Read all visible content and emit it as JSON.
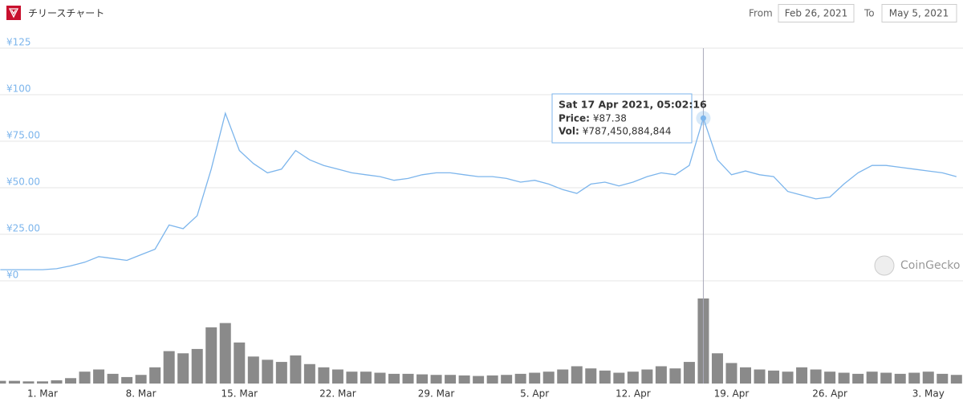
{
  "header": {
    "title": "チリースチャート",
    "from_label": "From",
    "from_date": "Feb 26, 2021",
    "to_label": "To",
    "to_date": "May 5, 2021"
  },
  "watermark": "CoinGecko",
  "chart_data": {
    "type": "line",
    "color": "#7cb5ec",
    "grid": true,
    "categories": [
      null,
      null,
      null,
      "1. Mar",
      null,
      null,
      null,
      null,
      null,
      null,
      "8. Mar",
      null,
      null,
      null,
      null,
      null,
      null,
      "15. Mar",
      null,
      null,
      null,
      null,
      null,
      null,
      "22. Mar",
      null,
      null,
      null,
      null,
      null,
      null,
      "29. Mar",
      null,
      null,
      null,
      null,
      null,
      null,
      "5. Apr",
      null,
      null,
      null,
      null,
      null,
      null,
      "12. Apr",
      null,
      null,
      null,
      null,
      null,
      null,
      "19. Apr",
      null,
      null,
      null,
      null,
      null,
      null,
      "26. Apr",
      null,
      null,
      null,
      null,
      null,
      null,
      "3. May",
      null,
      null
    ],
    "values": [
      6,
      6,
      6,
      6,
      6.5,
      8,
      10,
      13,
      12,
      11,
      14,
      17,
      30,
      28,
      35,
      60,
      90,
      70,
      63,
      58,
      60,
      70,
      65,
      62,
      60,
      58,
      57,
      56,
      54,
      55,
      57,
      58,
      58,
      57,
      56,
      56,
      55,
      53,
      54,
      52,
      49,
      47,
      52,
      53,
      51,
      53,
      56,
      58,
      57,
      62,
      87.38,
      65,
      57,
      59,
      57,
      56,
      48,
      46,
      44,
      45,
      52,
      58,
      62,
      62,
      61,
      60,
      59,
      58,
      56
    ],
    "ylim": [
      0,
      125
    ],
    "yticks": [
      {
        "value": 0,
        "label": "¥0"
      },
      {
        "value": 25,
        "label": "¥25.00"
      },
      {
        "value": 50,
        "label": "¥50.00"
      },
      {
        "value": 75,
        "label": "¥75.00"
      },
      {
        "value": 100,
        "label": "¥100"
      },
      {
        "value": 125,
        "label": "¥125"
      }
    ],
    "volume": {
      "type": "bar",
      "color": "#8a8a8a",
      "values": [
        25000000000,
        25000000000,
        20000000000,
        20000000000,
        30000000000,
        50000000000,
        110000000000,
        130000000000,
        90000000000,
        60000000000,
        80000000000,
        150000000000,
        300000000000,
        280000000000,
        320000000000,
        520000000000,
        560000000000,
        380000000000,
        250000000000,
        220000000000,
        200000000000,
        260000000000,
        180000000000,
        150000000000,
        130000000000,
        110000000000,
        110000000000,
        100000000000,
        90000000000,
        90000000000,
        85000000000,
        80000000000,
        80000000000,
        75000000000,
        70000000000,
        75000000000,
        80000000000,
        90000000000,
        100000000000,
        110000000000,
        130000000000,
        160000000000,
        140000000000,
        120000000000,
        100000000000,
        110000000000,
        130000000000,
        160000000000,
        140000000000,
        200000000000,
        787450884844,
        280000000000,
        190000000000,
        150000000000,
        130000000000,
        120000000000,
        110000000000,
        150000000000,
        130000000000,
        110000000000,
        100000000000,
        90000000000,
        110000000000,
        100000000000,
        90000000000,
        100000000000,
        110000000000,
        90000000000,
        80000000000
      ]
    },
    "tooltip": {
      "index": 50,
      "title": "Sat 17 Apr 2021, 05:02:16",
      "price_label": "Price:",
      "price": "¥87.38",
      "vol_label": "Vol:",
      "vol": "¥787,450,884,844"
    }
  }
}
